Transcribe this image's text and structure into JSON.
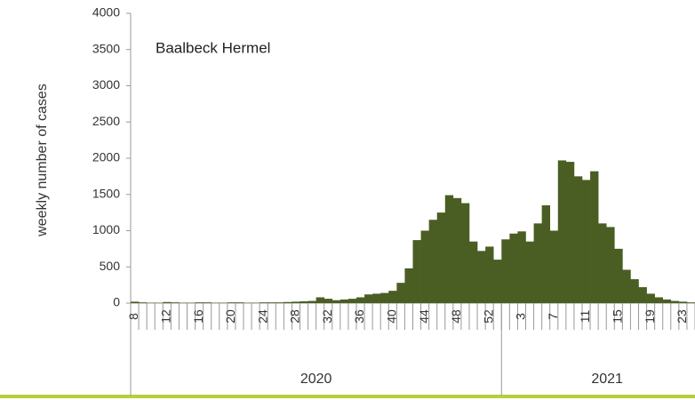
{
  "chart_data": {
    "type": "bar",
    "annotation": "Baalbeck Hermel",
    "y_label": "weekly number of cases",
    "color": "#4a5e23",
    "ylim": [
      0,
      4000
    ],
    "yticks": [
      0,
      500,
      1000,
      1500,
      2000,
      2500,
      3000,
      3500,
      4000
    ],
    "grid": false,
    "groups": [
      {
        "name": "2020",
        "categories": [
          "8",
          null,
          null,
          null,
          "12",
          null,
          null,
          null,
          "16",
          null,
          null,
          null,
          "20",
          null,
          null,
          null,
          "24",
          null,
          null,
          null,
          "28",
          null,
          null,
          null,
          "32",
          null,
          null,
          null,
          "36",
          null,
          null,
          null,
          "40",
          null,
          null,
          null,
          "44",
          null,
          null,
          null,
          "48",
          null,
          null,
          null,
          "52",
          null
        ],
        "values": [
          20,
          10,
          5,
          5,
          15,
          10,
          5,
          5,
          10,
          10,
          5,
          5,
          10,
          10,
          5,
          5,
          10,
          10,
          10,
          15,
          20,
          25,
          30,
          80,
          60,
          40,
          50,
          60,
          80,
          120,
          130,
          140,
          170,
          280,
          480,
          870,
          1000,
          1150,
          1250,
          1490,
          1450,
          1380,
          850,
          720,
          780,
          600
        ]
      },
      {
        "name": "2021",
        "categories": [
          null,
          null,
          "3",
          null,
          null,
          null,
          "7",
          null,
          null,
          null,
          "11",
          null,
          null,
          null,
          "15",
          null,
          null,
          null,
          "19",
          null,
          null,
          null,
          "23",
          null
        ],
        "values": [
          880,
          960,
          990,
          850,
          1100,
          1350,
          1000,
          1970,
          1950,
          1750,
          1700,
          1820,
          1100,
          1050,
          750,
          460,
          330,
          220,
          130,
          80,
          50,
          30,
          20,
          10
        ]
      }
    ]
  }
}
